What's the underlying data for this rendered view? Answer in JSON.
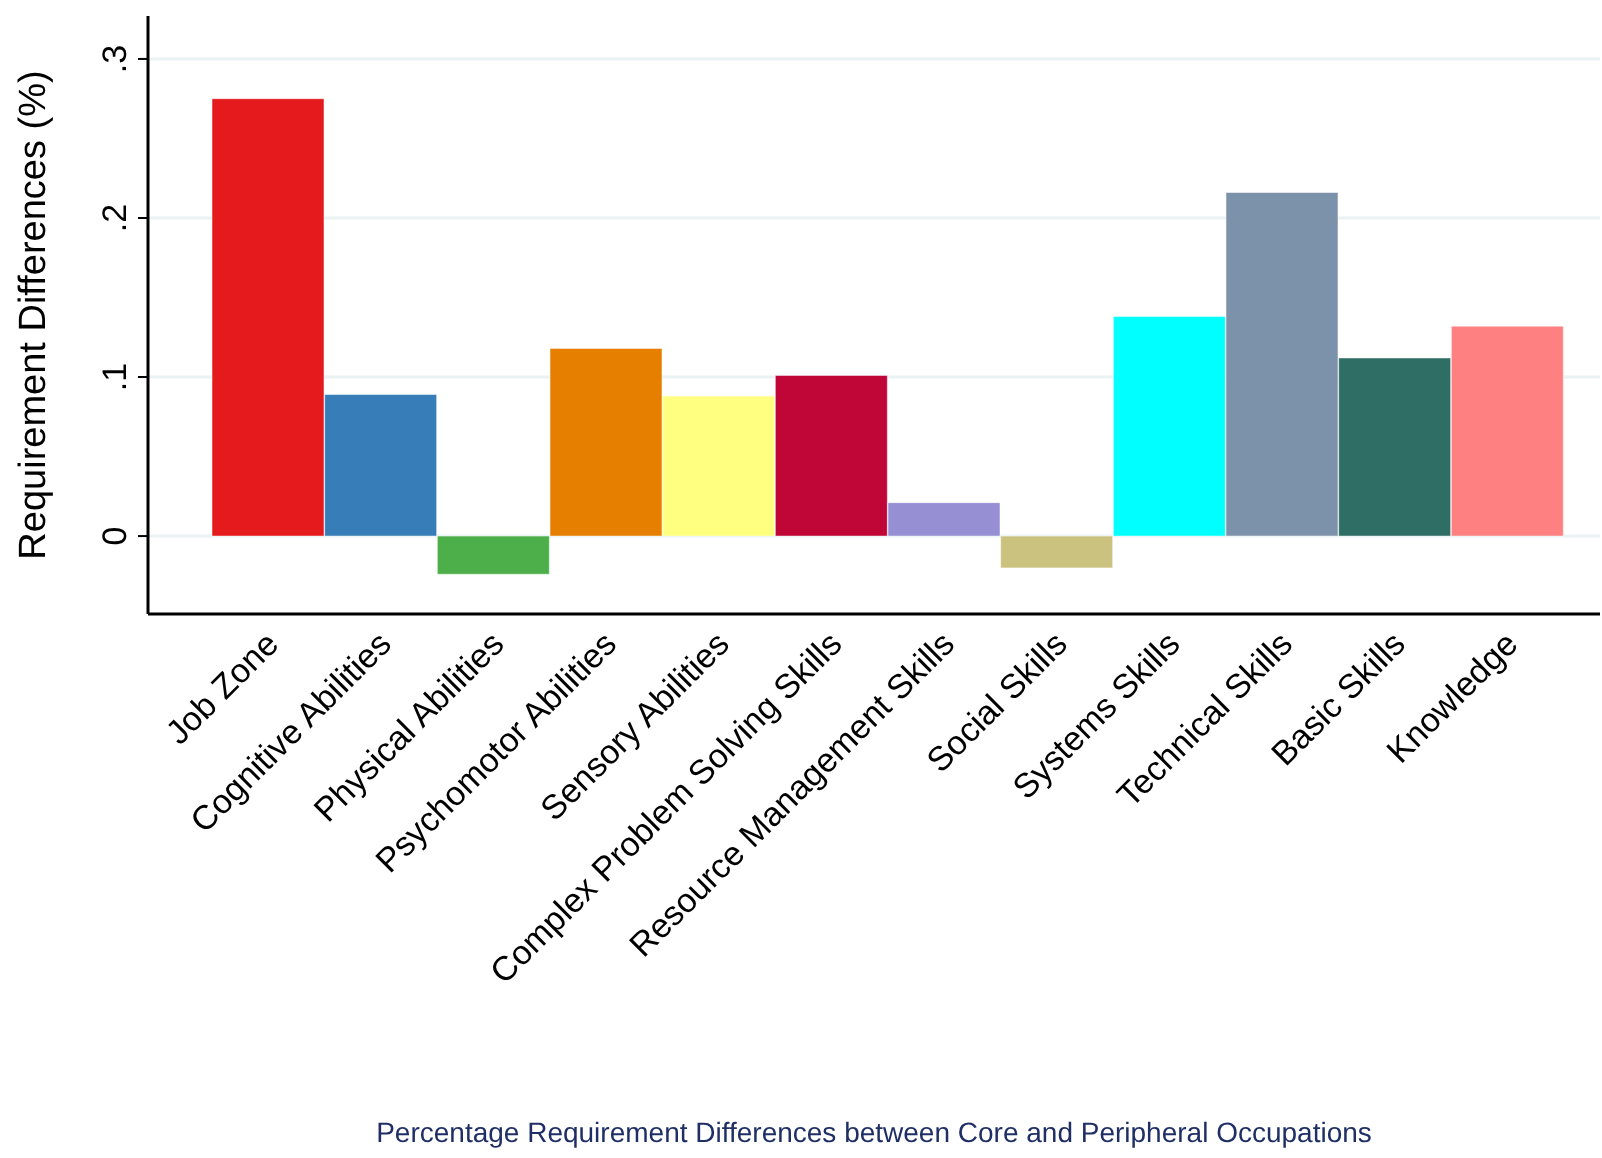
{
  "chart_data": {
    "type": "bar",
    "xlabel": "Percentage Requirement Differences between Core and Peripheral Occupations",
    "ylabel": "Requirement Differences (%)",
    "categories": [
      "Job Zone",
      "Cognitive Abilities",
      "Physical Abilities",
      "Psychomotor Abilities",
      "Sensory Abilities",
      "Complex Problem Solving Skills",
      "Resource Management Skills",
      "Social Skills",
      "Systems Skills",
      "Technical Skills",
      "Basic Skills",
      "Knowledge"
    ],
    "values": [
      0.275,
      0.089,
      -0.024,
      0.118,
      0.088,
      0.101,
      0.021,
      -0.02,
      0.138,
      0.216,
      0.112,
      0.132
    ],
    "colors": [
      "#e41a1c",
      "#377eb8",
      "#4daf4a",
      "#e67e00",
      "#ffff80",
      "#c00537",
      "#968fd4",
      "#cbc27f",
      "#00ffff",
      "#7c92aa",
      "#2e6e65",
      "#ff8080"
    ],
    "ylim": [
      -0.049,
      0.327
    ],
    "yticks": [
      0,
      {
        "value": 0.1,
        "label": ".1"
      },
      {
        "value": 0.2,
        "label": ".2"
      },
      {
        "value": 0.3,
        "label": ".3"
      }
    ],
    "grid": "y",
    "legend": false
  }
}
